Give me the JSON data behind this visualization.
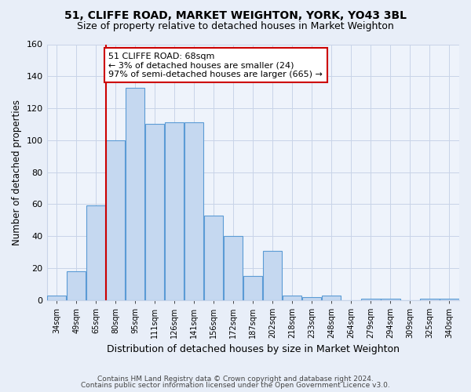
{
  "title": "51, CLIFFE ROAD, MARKET WEIGHTON, YORK, YO43 3BL",
  "subtitle": "Size of property relative to detached houses in Market Weighton",
  "xlabel": "Distribution of detached houses by size in Market Weighton",
  "ylabel": "Number of detached properties",
  "bin_labels": [
    "34sqm",
    "49sqm",
    "65sqm",
    "80sqm",
    "95sqm",
    "111sqm",
    "126sqm",
    "141sqm",
    "156sqm",
    "172sqm",
    "187sqm",
    "202sqm",
    "218sqm",
    "233sqm",
    "248sqm",
    "264sqm",
    "279sqm",
    "294sqm",
    "309sqm",
    "325sqm",
    "340sqm"
  ],
  "bar_heights": [
    3,
    18,
    59,
    100,
    133,
    110,
    111,
    111,
    53,
    40,
    15,
    31,
    3,
    2,
    3,
    0,
    1,
    1,
    0,
    1,
    1
  ],
  "bar_color": "#c5d8f0",
  "bar_edge_color": "#5b9bd5",
  "red_line_color": "#cc0000",
  "red_line_index": 2.5,
  "annotation_text": "51 CLIFFE ROAD: 68sqm\n← 3% of detached houses are smaller (24)\n97% of semi-detached houses are larger (665) →",
  "annotation_box_color": "white",
  "annotation_box_edge": "#cc0000",
  "ylim": [
    0,
    160
  ],
  "yticks": [
    0,
    20,
    40,
    60,
    80,
    100,
    120,
    140,
    160
  ],
  "footer_line1": "Contains HM Land Registry data © Crown copyright and database right 2024.",
  "footer_line2": "Contains public sector information licensed under the Open Government Licence v3.0.",
  "bg_color": "#e8eef8",
  "plot_bg_color": "#eef3fb",
  "grid_color": "#c8d4e8",
  "title_fontsize": 10,
  "subtitle_fontsize": 9
}
